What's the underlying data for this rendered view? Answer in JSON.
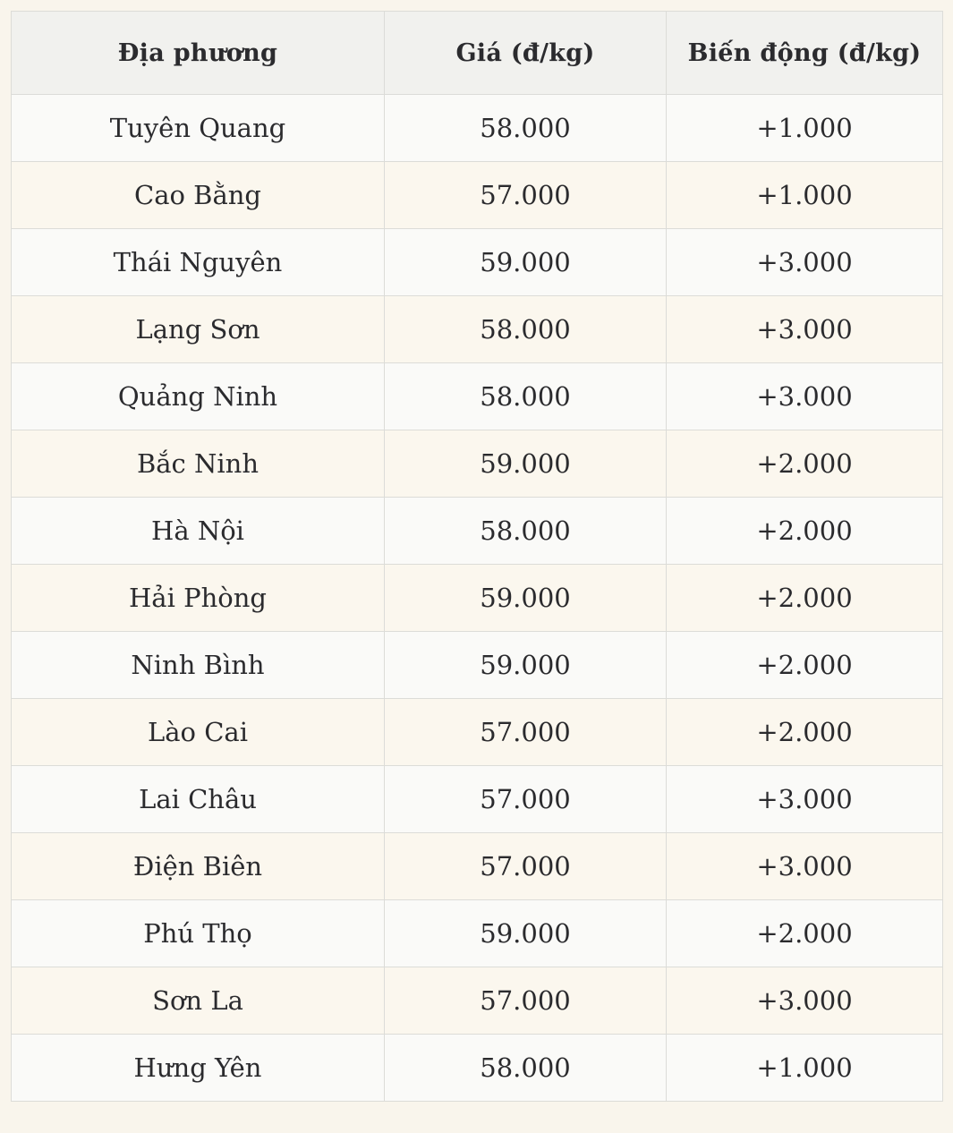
{
  "colors": {
    "page_bg": "#f9f5ec",
    "header_bg": "#f1f1ee",
    "row_odd_bg": "#fafaf8",
    "row_even_bg": "#fbf7ee",
    "border": "#dcdcd8",
    "text": "#2b2b2e"
  },
  "chart_data": {
    "type": "table",
    "columns": [
      "Địa phương",
      "Giá (đ/kg)",
      "Biến động (đ/kg)"
    ],
    "column_keys": [
      "region",
      "price",
      "change"
    ],
    "rows": [
      {
        "region": "Tuyên Quang",
        "price": "58.000",
        "change": "+1.000"
      },
      {
        "region": "Cao Bằng",
        "price": "57.000",
        "change": "+1.000"
      },
      {
        "region": "Thái Nguyên",
        "price": "59.000",
        "change": "+3.000"
      },
      {
        "region": "Lạng Sơn",
        "price": "58.000",
        "change": "+3.000"
      },
      {
        "region": "Quảng Ninh",
        "price": "58.000",
        "change": "+3.000"
      },
      {
        "region": "Bắc Ninh",
        "price": "59.000",
        "change": "+2.000"
      },
      {
        "region": "Hà Nội",
        "price": "58.000",
        "change": "+2.000"
      },
      {
        "region": "Hải Phòng",
        "price": "59.000",
        "change": "+2.000"
      },
      {
        "region": "Ninh Bình",
        "price": "59.000",
        "change": "+2.000"
      },
      {
        "region": "Lào Cai",
        "price": "57.000",
        "change": "+2.000"
      },
      {
        "region": "Lai Châu",
        "price": "57.000",
        "change": "+3.000"
      },
      {
        "region": "Điện Biên",
        "price": "57.000",
        "change": "+3.000"
      },
      {
        "region": "Phú Thọ",
        "price": "59.000",
        "change": "+2.000"
      },
      {
        "region": "Sơn La",
        "price": "57.000",
        "change": "+3.000"
      },
      {
        "region": "Hưng Yên",
        "price": "58.000",
        "change": "+1.000"
      }
    ]
  }
}
